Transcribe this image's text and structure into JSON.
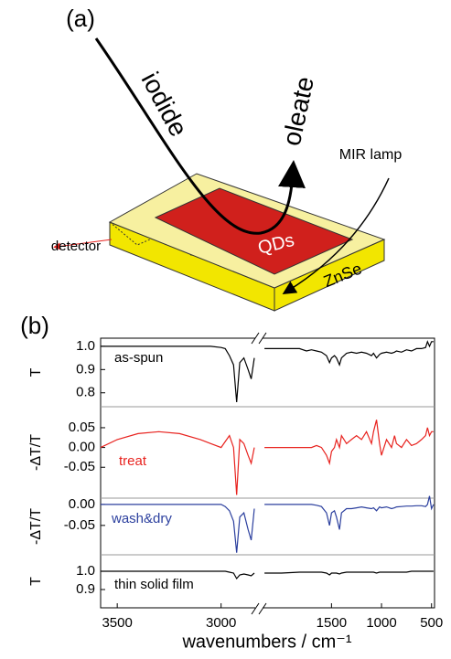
{
  "diagram": {
    "label": "(a)",
    "iodide": "iodide",
    "oleate": "oleate",
    "lamp": "MIR lamp",
    "detector": "detector",
    "qds": "QDs",
    "znse": "ZnSe"
  },
  "panel_label": "(b)",
  "x_axis": {
    "xlabel": "wavenumbers / cm⁻¹",
    "segments": [
      {
        "xlim": [
          3580,
          2840
        ],
        "xticks": [
          3500,
          3000
        ]
      },
      {
        "xlim": [
          2180,
          470
        ],
        "xticks": [
          1500,
          1000,
          500
        ]
      }
    ],
    "x": [
      3580,
      3500,
      3400,
      3300,
      3200,
      3100,
      3050,
      3000,
      2980,
      2960,
      2940,
      2925,
      2910,
      2890,
      2870,
      2855,
      2840,
      2500,
      2170,
      2000,
      1820,
      1750,
      1700,
      1650,
      1600,
      1550,
      1520,
      1500,
      1470,
      1450,
      1420,
      1400,
      1350,
      1300,
      1250,
      1200,
      1150,
      1100,
      1080,
      1050,
      1020,
      1000,
      950,
      900,
      870,
      850,
      800,
      750,
      700,
      650,
      600,
      560,
      540,
      520,
      500,
      480
    ]
  },
  "chart_data": [
    {
      "type": "line",
      "ylabel": "T",
      "ylim": [
        0.74,
        1.035
      ],
      "yticks": [
        {
          "value": 1,
          "label": "1.0"
        },
        0.9,
        0.8
      ],
      "series": [
        {
          "name": "as-spun",
          "color": "#000000",
          "values": [
            1.0,
            1.0,
            1.0,
            1.0,
            1.0,
            1.0,
            1.0,
            0.995,
            0.99,
            0.96,
            0.92,
            0.76,
            0.93,
            0.95,
            0.9,
            0.86,
            0.95,
            null,
            0.99,
            0.99,
            0.99,
            0.98,
            0.985,
            0.98,
            0.975,
            0.96,
            0.93,
            0.95,
            0.96,
            0.95,
            0.92,
            0.95,
            0.97,
            0.975,
            0.97,
            0.975,
            0.97,
            0.96,
            0.97,
            0.95,
            0.965,
            0.97,
            0.975,
            0.97,
            0.975,
            0.98,
            0.975,
            0.985,
            0.98,
            0.99,
            0.99,
            0.995,
            1.02,
            1.0,
            1.02,
            1.02
          ]
        }
      ]
    },
    {
      "type": "line",
      "ylabel": "-ΔT/T",
      "ylim": [
        -0.128,
        0.103
      ],
      "yticks": [
        {
          "value": 0.05,
          "label": "0.05"
        },
        {
          "value": 0,
          "label": "0.00"
        },
        {
          "value": -0.05,
          "label": "-0.05"
        }
      ],
      "series": [
        {
          "name": "treat",
          "color": "#e8231f",
          "values": [
            0.0,
            0.02,
            0.035,
            0.04,
            0.035,
            0.02,
            0.01,
            0.0,
            0.015,
            0.03,
            0.0,
            -0.12,
            0.02,
            0.01,
            -0.02,
            -0.04,
            0.0,
            null,
            0.0,
            0.0,
            0.0,
            0.0,
            0.0,
            0.005,
            0.0,
            -0.02,
            -0.04,
            -0.01,
            0.0,
            0.02,
            0.0,
            0.03,
            0.01,
            0.02,
            0.03,
            0.02,
            0.04,
            0.01,
            0.04,
            0.07,
            0.01,
            -0.02,
            0.02,
            0.0,
            0.03,
            0.01,
            0.0,
            0.02,
            0.005,
            0.01,
            0.02,
            0.03,
            0.05,
            0.03,
            0.04,
            0.04
          ]
        }
      ]
    },
    {
      "type": "line",
      "ylabel": "-ΔT/T",
      "ylim": [
        -0.12,
        0.015
      ],
      "yticks": [
        {
          "value": 0,
          "label": "0.00"
        },
        {
          "value": -0.05,
          "label": "-0.05"
        }
      ],
      "series": [
        {
          "name": "wash&dry",
          "color": "#2b3f9e",
          "values": [
            0,
            0,
            0,
            0,
            0,
            0,
            0,
            0,
            -0.005,
            -0.015,
            -0.04,
            -0.115,
            -0.03,
            -0.02,
            -0.06,
            -0.085,
            -0.01,
            null,
            0,
            0,
            0,
            0,
            0,
            -0.002,
            -0.005,
            -0.02,
            -0.05,
            -0.02,
            -0.015,
            -0.03,
            -0.06,
            -0.02,
            -0.01,
            -0.01,
            -0.008,
            -0.006,
            -0.008,
            -0.01,
            -0.008,
            -0.015,
            -0.006,
            -0.008,
            -0.006,
            -0.01,
            -0.008,
            -0.006,
            -0.005,
            -0.004,
            -0.004,
            -0.003,
            -0.003,
            -0.005,
            0.0,
            0.02,
            -0.01,
            0.0
          ]
        }
      ]
    },
    {
      "type": "line",
      "ylabel": "T",
      "ylim": [
        0.8,
        1.09
      ],
      "yticks": [
        {
          "value": 1,
          "label": "1.0"
        },
        0.9
      ],
      "series": [
        {
          "name": "thin solid film",
          "color": "#000000",
          "values": [
            1.0,
            1.0,
            1.0,
            1.0,
            1.0,
            1.0,
            1.0,
            1.0,
            1.0,
            0.995,
            0.99,
            0.96,
            0.98,
            0.985,
            0.98,
            0.975,
            0.99,
            null,
            0.99,
            0.99,
            0.995,
            0.995,
            0.995,
            0.995,
            0.995,
            0.99,
            0.98,
            0.99,
            0.99,
            0.99,
            0.985,
            0.99,
            0.995,
            0.995,
            0.995,
            0.995,
            0.995,
            0.995,
            0.995,
            0.99,
            0.995,
            0.995,
            0.995,
            0.995,
            0.995,
            0.995,
            0.995,
            0.995,
            1.0,
            1.0,
            1.0,
            1.0,
            1.0,
            1.0,
            1.0,
            1.0
          ]
        }
      ]
    }
  ]
}
